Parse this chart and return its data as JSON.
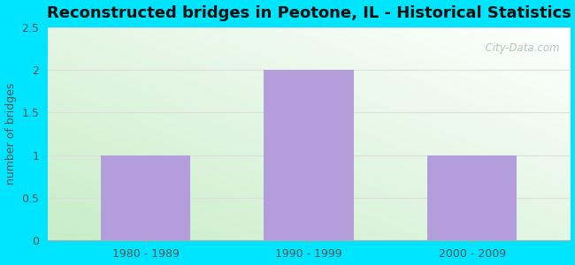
{
  "title": "Reconstructed bridges in Peotone, IL - Historical Statistics",
  "categories": [
    "1980 - 1989",
    "1990 - 1999",
    "2000 - 2009"
  ],
  "values": [
    1,
    2,
    1
  ],
  "bar_color": "#b39ddb",
  "ylabel": "number of bridges",
  "ylim": [
    0,
    2.5
  ],
  "yticks": [
    0,
    0.5,
    1,
    1.5,
    2,
    2.5
  ],
  "background_outer": "#00e5ff",
  "grid_color": "#dddddd",
  "title_fontsize": 13,
  "axis_label_fontsize": 9,
  "tick_fontsize": 9,
  "watermark": "  City-Data.com",
  "ylabel_color": "#555555",
  "tick_color": "#555555"
}
